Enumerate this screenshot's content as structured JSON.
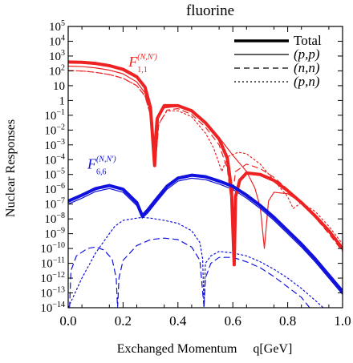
{
  "chart_data": {
    "type": "line",
    "title": "fluorine",
    "xlabel": "Exchanged Momentum     q[GeV]",
    "ylabel": "Nuclear Responses",
    "xlim": [
      0.0,
      1.0
    ],
    "ylim_log10": [
      -14,
      5
    ],
    "y_scale": "log",
    "grid": false,
    "legend_position": "top-right",
    "x_ticks": [
      "0.0",
      "0.2",
      "0.4",
      "0.6",
      "0.8",
      "1.0"
    ],
    "x_tick_values": [
      0.0,
      0.2,
      0.4,
      0.6,
      0.8,
      1.0
    ],
    "y_tick_exponents": [
      5,
      4,
      3,
      2,
      1,
      0,
      -1,
      -2,
      -3,
      -4,
      -5,
      -6,
      -7,
      -8,
      -9,
      -10,
      -11,
      -12,
      -13,
      -14
    ],
    "legend": [
      {
        "label": "Total",
        "style": "thick-solid"
      },
      {
        "label": "(p,p)",
        "style": "solid"
      },
      {
        "label": "(n,n)",
        "style": "dashed"
      },
      {
        "label": "(p,n)",
        "style": "dotted"
      }
    ],
    "annotations": [
      {
        "text": "F",
        "sup": "(N,N′)",
        "sub": "1,1",
        "color": "#ee2222",
        "x": 0.22,
        "log10y": 2.3
      },
      {
        "text": "F",
        "sup": "(N,N′)",
        "sub": "6,6",
        "color": "#1111dd",
        "x": 0.07,
        "log10y": -4.6
      }
    ],
    "colors": {
      "F11": "#ee2222",
      "F66": "#1111dd",
      "axis": "#000000"
    },
    "series": [
      {
        "group": "F11",
        "component": "Total",
        "points": [
          [
            0.0,
            2.6
          ],
          [
            0.05,
            2.58
          ],
          [
            0.1,
            2.5
          ],
          [
            0.15,
            2.35
          ],
          [
            0.2,
            2.1
          ],
          [
            0.25,
            1.6
          ],
          [
            0.28,
            0.9
          ],
          [
            0.3,
            -0.5
          ],
          [
            0.315,
            -4.4
          ],
          [
            0.325,
            -1.2
          ],
          [
            0.35,
            -0.35
          ],
          [
            0.4,
            -0.35
          ],
          [
            0.45,
            -0.7
          ],
          [
            0.5,
            -1.5
          ],
          [
            0.55,
            -2.6
          ],
          [
            0.58,
            -3.9
          ],
          [
            0.595,
            -6.0
          ],
          [
            0.605,
            -11.1
          ],
          [
            0.61,
            -6.5
          ],
          [
            0.625,
            -5.4
          ],
          [
            0.65,
            -4.9
          ],
          [
            0.7,
            -5.0
          ],
          [
            0.75,
            -5.4
          ],
          [
            0.8,
            -6.1
          ],
          [
            0.85,
            -6.9
          ],
          [
            0.9,
            -7.8
          ],
          [
            0.95,
            -8.8
          ],
          [
            1.0,
            -10.0
          ]
        ]
      },
      {
        "group": "F11",
        "component": "(p,p)",
        "points": [
          [
            0.0,
            2.32
          ],
          [
            0.05,
            2.29
          ],
          [
            0.1,
            2.2
          ],
          [
            0.15,
            2.05
          ],
          [
            0.2,
            1.8
          ],
          [
            0.25,
            1.25
          ],
          [
            0.28,
            0.5
          ],
          [
            0.3,
            -0.8
          ],
          [
            0.31,
            -3.5
          ],
          [
            0.32,
            -1.3
          ],
          [
            0.35,
            -0.5
          ],
          [
            0.4,
            -0.4
          ],
          [
            0.45,
            -0.75
          ],
          [
            0.5,
            -1.5
          ],
          [
            0.55,
            -2.5
          ],
          [
            0.6,
            -3.7
          ],
          [
            0.65,
            -4.8
          ],
          [
            0.68,
            -5.9
          ],
          [
            0.7,
            -7.2
          ],
          [
            0.715,
            -10.0
          ],
          [
            0.73,
            -6.8
          ],
          [
            0.75,
            -6.2
          ],
          [
            0.8,
            -6.3
          ],
          [
            0.85,
            -6.9
          ],
          [
            0.9,
            -7.7
          ],
          [
            0.95,
            -8.7
          ],
          [
            1.0,
            -9.9
          ]
        ]
      },
      {
        "group": "F11",
        "component": "(n,n)",
        "points": [
          [
            0.0,
            2.02
          ],
          [
            0.05,
            1.99
          ],
          [
            0.1,
            1.9
          ],
          [
            0.15,
            1.75
          ],
          [
            0.2,
            1.5
          ],
          [
            0.25,
            1.0
          ],
          [
            0.28,
            0.3
          ],
          [
            0.3,
            -1.0
          ],
          [
            0.32,
            -3.8
          ],
          [
            0.33,
            -1.6
          ],
          [
            0.36,
            -0.65
          ],
          [
            0.4,
            -0.55
          ],
          [
            0.45,
            -0.95
          ],
          [
            0.5,
            -1.8
          ],
          [
            0.55,
            -3.0
          ],
          [
            0.58,
            -4.6
          ],
          [
            0.595,
            -7.0
          ],
          [
            0.61,
            -4.8
          ],
          [
            0.65,
            -4.3
          ],
          [
            0.7,
            -4.6
          ],
          [
            0.75,
            -5.2
          ],
          [
            0.8,
            -6.0
          ],
          [
            0.85,
            -6.9
          ],
          [
            0.9,
            -7.9
          ],
          [
            0.95,
            -9.0
          ],
          [
            1.0,
            -10.2
          ]
        ]
      },
      {
        "group": "F11",
        "component": "(p,n)",
        "points": [
          [
            0.0,
            2.02
          ],
          [
            0.05,
            1.99
          ],
          [
            0.1,
            1.9
          ],
          [
            0.15,
            1.75
          ],
          [
            0.2,
            1.5
          ],
          [
            0.25,
            1.0
          ],
          [
            0.28,
            0.3
          ],
          [
            0.3,
            -1.0
          ],
          [
            0.32,
            -3.8
          ],
          [
            0.33,
            -1.6
          ],
          [
            0.36,
            -0.7
          ],
          [
            0.4,
            -0.7
          ],
          [
            0.45,
            -1.1
          ],
          [
            0.5,
            -2.2
          ],
          [
            0.53,
            -3.2
          ],
          [
            0.56,
            -4.8
          ],
          [
            0.58,
            -3.8
          ],
          [
            0.62,
            -3.5
          ],
          [
            0.65,
            -3.6
          ],
          [
            0.7,
            -4.3
          ],
          [
            0.75,
            -5.4
          ],
          [
            0.8,
            -6.5
          ],
          [
            0.82,
            -7.3
          ],
          [
            0.85,
            -6.9
          ],
          [
            0.9,
            -7.5
          ],
          [
            0.95,
            -8.5
          ],
          [
            1.0,
            -9.7
          ]
        ]
      },
      {
        "group": "F66",
        "component": "Total",
        "points": [
          [
            0.0,
            -6.8
          ],
          [
            0.05,
            -6.4
          ],
          [
            0.1,
            -5.95
          ],
          [
            0.15,
            -5.75
          ],
          [
            0.2,
            -6.0
          ],
          [
            0.25,
            -6.9
          ],
          [
            0.27,
            -7.8
          ],
          [
            0.29,
            -7.4
          ],
          [
            0.32,
            -6.7
          ],
          [
            0.36,
            -5.8
          ],
          [
            0.4,
            -5.25
          ],
          [
            0.45,
            -5.05
          ],
          [
            0.5,
            -5.15
          ],
          [
            0.55,
            -5.45
          ],
          [
            0.6,
            -5.8
          ],
          [
            0.65,
            -6.4
          ],
          [
            0.7,
            -7.1
          ],
          [
            0.75,
            -7.9
          ],
          [
            0.8,
            -8.8
          ],
          [
            0.85,
            -9.7
          ],
          [
            0.9,
            -10.7
          ],
          [
            0.95,
            -11.8
          ],
          [
            1.0,
            -12.9
          ]
        ]
      },
      {
        "group": "F66",
        "component": "(p,p)",
        "points": [
          [
            0.0,
            -7.0
          ],
          [
            0.05,
            -6.6
          ],
          [
            0.1,
            -6.15
          ],
          [
            0.15,
            -5.95
          ],
          [
            0.2,
            -6.2
          ],
          [
            0.25,
            -7.1
          ],
          [
            0.27,
            -7.95
          ],
          [
            0.29,
            -7.6
          ],
          [
            0.32,
            -6.9
          ],
          [
            0.36,
            -6.0
          ],
          [
            0.4,
            -5.45
          ],
          [
            0.45,
            -5.25
          ],
          [
            0.5,
            -5.35
          ],
          [
            0.55,
            -5.65
          ],
          [
            0.6,
            -6.0
          ],
          [
            0.65,
            -6.6
          ],
          [
            0.7,
            -7.3
          ],
          [
            0.75,
            -8.1
          ],
          [
            0.8,
            -9.0
          ],
          [
            0.85,
            -9.9
          ],
          [
            0.9,
            -10.9
          ],
          [
            0.95,
            -12.0
          ],
          [
            1.0,
            -13.1
          ]
        ]
      },
      {
        "group": "F66",
        "component": "(n,n)",
        "points": [
          [
            0.005,
            -14.0
          ],
          [
            0.01,
            -11.5
          ],
          [
            0.03,
            -10.5
          ],
          [
            0.07,
            -10.0
          ],
          [
            0.1,
            -9.9
          ],
          [
            0.13,
            -10.1
          ],
          [
            0.16,
            -10.7
          ],
          [
            0.175,
            -12.0
          ],
          [
            0.18,
            -14.0
          ],
          [
            0.185,
            -12.0
          ],
          [
            0.2,
            -10.8
          ],
          [
            0.25,
            -9.8
          ],
          [
            0.3,
            -9.4
          ],
          [
            0.35,
            -9.3
          ],
          [
            0.4,
            -9.4
          ],
          [
            0.45,
            -9.9
          ],
          [
            0.48,
            -10.8
          ],
          [
            0.495,
            -14.0
          ],
          [
            0.5,
            -12.0
          ],
          [
            0.52,
            -11.0
          ],
          [
            0.55,
            -10.6
          ],
          [
            0.6,
            -10.6
          ],
          [
            0.65,
            -10.9
          ],
          [
            0.7,
            -11.3
          ],
          [
            0.75,
            -11.9
          ],
          [
            0.8,
            -12.6
          ],
          [
            0.85,
            -13.3
          ],
          [
            0.88,
            -14.0
          ]
        ]
      },
      {
        "group": "F66",
        "component": "(p,n)",
        "points": [
          [
            0.0,
            -14.0
          ],
          [
            0.05,
            -12.0
          ],
          [
            0.1,
            -10.3
          ],
          [
            0.15,
            -9.0
          ],
          [
            0.17,
            -8.5
          ],
          [
            0.2,
            -8.1
          ],
          [
            0.25,
            -7.95
          ],
          [
            0.27,
            -7.9
          ],
          [
            0.3,
            -7.95
          ],
          [
            0.35,
            -8.1
          ],
          [
            0.4,
            -8.3
          ],
          [
            0.45,
            -8.8
          ],
          [
            0.48,
            -9.6
          ],
          [
            0.49,
            -10.7
          ],
          [
            0.495,
            -14.0
          ],
          [
            0.5,
            -11.0
          ],
          [
            0.52,
            -10.5
          ],
          [
            0.55,
            -10.2
          ],
          [
            0.6,
            -10.3
          ],
          [
            0.65,
            -10.5
          ],
          [
            0.7,
            -10.9
          ],
          [
            0.75,
            -11.4
          ],
          [
            0.8,
            -12.0
          ],
          [
            0.85,
            -12.7
          ],
          [
            0.9,
            -13.5
          ],
          [
            0.93,
            -14.0
          ]
        ]
      }
    ]
  }
}
